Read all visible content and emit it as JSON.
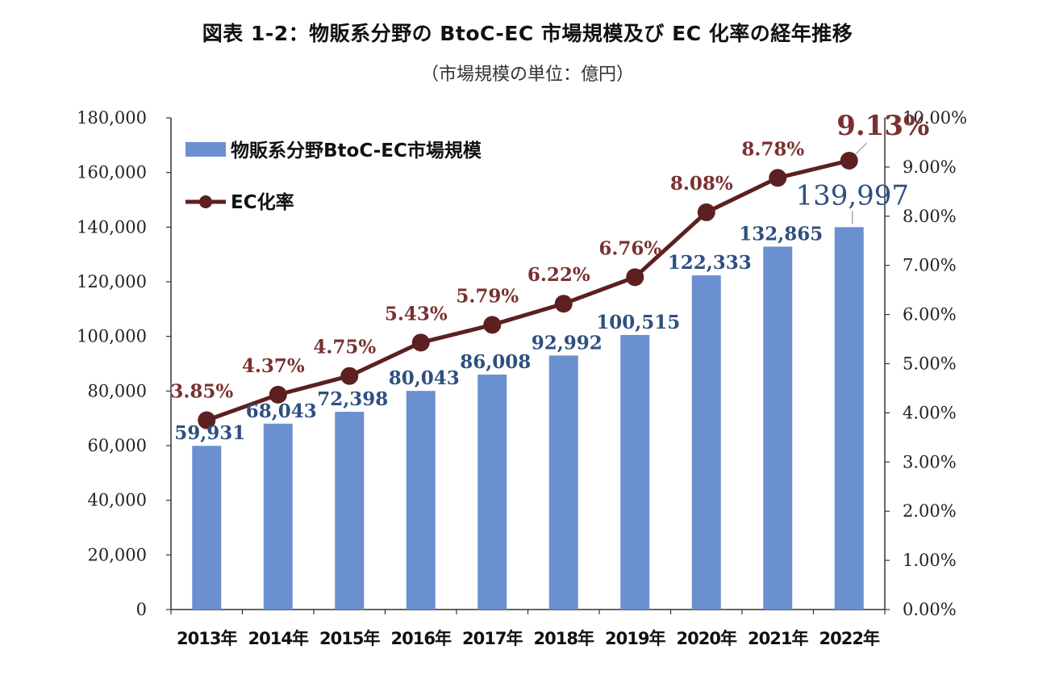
{
  "title": "図表 1-2：物販系分野の BtoC-EC 市場規模及び EC 化率の経年推移",
  "subtitle": "（市場規模の単位：億円）",
  "colors": {
    "bar": "#6a90d0",
    "line": "#5c2020",
    "bar_label": "#2f4f80",
    "line_label": "#7a3030",
    "axis": "#333333"
  },
  "chart_data": {
    "type": "bar",
    "categories": [
      "2013年",
      "2014年",
      "2015年",
      "2016年",
      "2017年",
      "2018年",
      "2019年",
      "2020年",
      "2021年",
      "2022年"
    ],
    "series": [
      {
        "name": "物販系分野BtoC-EC市場規模",
        "type": "bar",
        "axis": "left",
        "values": [
          59931,
          68043,
          72398,
          80043,
          86008,
          92992,
          100515,
          122333,
          132865,
          139997
        ],
        "labels": [
          "59,931",
          "68,043",
          "72,398",
          "80,043",
          "86,008",
          "92,992",
          "100,515",
          "122,333",
          "132,865",
          "139,997"
        ]
      },
      {
        "name": "EC化率",
        "type": "line",
        "axis": "right",
        "values": [
          3.85,
          4.37,
          4.75,
          5.43,
          5.79,
          6.22,
          6.76,
          8.08,
          8.78,
          9.13
        ],
        "labels": [
          "3.85%",
          "4.37%",
          "4.75%",
          "5.43%",
          "5.79%",
          "6.22%",
          "6.76%",
          "8.08%",
          "8.78%",
          "9.13%"
        ]
      }
    ],
    "y_left": {
      "lim": [
        0,
        180000
      ],
      "ticks": [
        "0",
        "20,000",
        "40,000",
        "60,000",
        "80,000",
        "100,000",
        "120,000",
        "140,000",
        "160,000",
        "180,000"
      ]
    },
    "y_right": {
      "lim": [
        0,
        10
      ],
      "ticks": [
        "0.00%",
        "1.00%",
        "2.00%",
        "3.00%",
        "4.00%",
        "5.00%",
        "6.00%",
        "7.00%",
        "8.00%",
        "9.00%",
        "10.00%"
      ]
    },
    "grid": false,
    "legend": "top-left"
  }
}
